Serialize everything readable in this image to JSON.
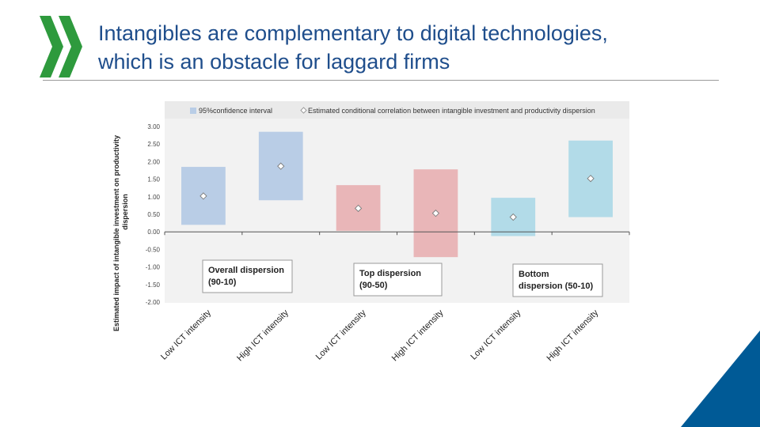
{
  "slide": {
    "title_line1": "Intangibles are complementary to digital technologies,",
    "title_line2": "which is an obstacle for laggard firms"
  },
  "colors": {
    "title": "#1f4e8c",
    "logo": "#2e9a3d",
    "corner": "#005a96",
    "blue_box": "#b9cde6",
    "red_box": "#e9b6b8",
    "cyan_box": "#b2dbe8",
    "plot_bg": "#f2f2f2"
  },
  "chart_data": {
    "type": "floating-bar-with-markers",
    "ylabel_line1": "Estimated impact of intangible investment on productivity",
    "ylabel_line2": "dispersion",
    "ylim": [
      -2.0,
      3.0
    ],
    "yticks": [
      "3.00",
      "2.50",
      "2.00",
      "1.50",
      "1.00",
      "0.50",
      "0.00",
      "-0.50",
      "-1.00",
      "-1.50",
      "-2.00"
    ],
    "ytick_values": [
      3.0,
      2.5,
      2.0,
      1.5,
      1.0,
      0.5,
      0.0,
      -0.5,
      -1.0,
      -1.5,
      -2.0
    ],
    "legend": {
      "placement": "top",
      "interval_label": "95%confidence interval",
      "estimate_label": "Estimated conditional correlation between intangible investment and productivity dispersion"
    },
    "categories": [
      "Low ICT intensity",
      "High ICT intensity",
      "Low ICT intensity",
      "High ICT intensity",
      "Low ICT intensity",
      "High ICT intensity"
    ],
    "intervals": [
      {
        "low": 0.2,
        "high": 1.85,
        "color": "#b9cde6"
      },
      {
        "low": 0.9,
        "high": 2.85,
        "color": "#b9cde6"
      },
      {
        "low": 0.03,
        "high": 1.33,
        "color": "#e9b6b8"
      },
      {
        "low": -0.72,
        "high": 1.78,
        "color": "#e9b6b8"
      },
      {
        "low": -0.12,
        "high": 0.97,
        "color": "#b2dbe8"
      },
      {
        "low": 0.42,
        "high": 2.6,
        "color": "#b2dbe8"
      }
    ],
    "estimates": [
      1.02,
      1.87,
      0.67,
      0.53,
      0.42,
      1.52
    ],
    "groups": [
      {
        "line1": "Overall dispersion",
        "line2": "(90-10)"
      },
      {
        "line1": "Top dispersion",
        "line2": "(90-50)"
      },
      {
        "line1": "Bottom",
        "line2": "dispersion (50-10)"
      }
    ]
  }
}
